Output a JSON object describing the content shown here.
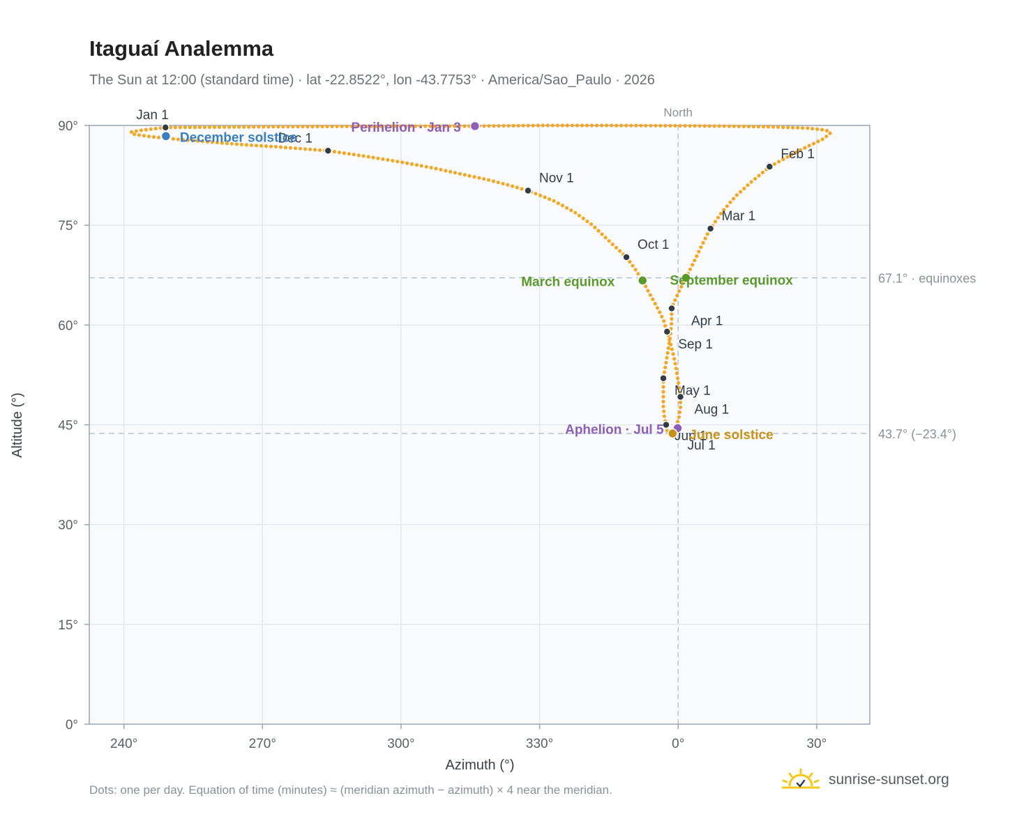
{
  "header": {
    "title": "Itaguaí Analemma",
    "subtitle": "The Sun at 12:00 (standard time) · lat -22.8522°, lon -43.7753° · America/Sao_Paulo · 2026"
  },
  "footer": {
    "note": "Dots: one per day. Equation of time (minutes) ≈ (meridian azimuth − azimuth) × 4 near the meridian.",
    "brand": "sunrise-sunset.org",
    "brand_icon": "sun-check-icon"
  },
  "colors": {
    "curve": "#f5a623",
    "month_marker": "#333b45",
    "equinox": "#5a9a2a",
    "june_solstice": "#c8921a",
    "december_solstice": "#3a7ec0",
    "perihelion_aphelion": "#8e5fb8",
    "plot_bg": "#f8fafc",
    "grid": "#e3e7ec",
    "reference_line": "#b7c3d0"
  },
  "chart_data": {
    "type": "scatter",
    "xlabel": "Azimuth (°)",
    "ylabel": "Altitude (°)",
    "xlim": [
      232.5,
      41.5
    ],
    "ylim": [
      0,
      90
    ],
    "x_ticks": [
      "240°",
      "270°",
      "300°",
      "330°",
      "0°",
      "30°"
    ],
    "x_tick_values": [
      240,
      270,
      300,
      330,
      360,
      390
    ],
    "y_ticks": [
      "0°",
      "15°",
      "30°",
      "45°",
      "60°",
      "75°",
      "90°"
    ],
    "y_tick_values": [
      0,
      15,
      30,
      45,
      60,
      75,
      90
    ],
    "grid": true,
    "north_label": "North",
    "north_azimuth": 0,
    "reference_lines": [
      {
        "altitude": 67.1,
        "label": "67.1° · equinoxes"
      },
      {
        "altitude": 43.7,
        "label": "43.7° (−23.4°)"
      }
    ],
    "month_markers": [
      {
        "label": "Jan 1",
        "az": 249.0,
        "alt": 89.7
      },
      {
        "label": "Feb 1",
        "az": 19.8,
        "alt": 83.8
      },
      {
        "label": "Mar 1",
        "az": 7.0,
        "alt": 74.5
      },
      {
        "label": "Apr 1",
        "az": 358.6,
        "alt": 62.5
      },
      {
        "label": "May 1",
        "az": 356.8,
        "alt": 52.0
      },
      {
        "label": "Jun 1",
        "az": 357.4,
        "alt": 45.0
      },
      {
        "label": "Jul 1",
        "az": 359.0,
        "alt": 43.8
      },
      {
        "label": "Aug 1",
        "az": 0.5,
        "alt": 49.2
      },
      {
        "label": "Sep 1",
        "az": 357.6,
        "alt": 59.0
      },
      {
        "label": "Oct 1",
        "az": 348.8,
        "alt": 70.2
      },
      {
        "label": "Nov 1",
        "az": 327.5,
        "alt": 80.2
      },
      {
        "label": "Dec 1",
        "az": 284.2,
        "alt": 86.2
      }
    ],
    "events": [
      {
        "label": "December solstice",
        "az": 249.1,
        "alt": 88.4,
        "kind": "december_solstice"
      },
      {
        "label": "Perihelion · Jan 3",
        "az": 316.0,
        "alt": 89.9,
        "kind": "perihelion_aphelion"
      },
      {
        "label": "March equinox",
        "az": 352.3,
        "alt": 66.7,
        "kind": "equinox"
      },
      {
        "label": "September equinox",
        "az": 1.7,
        "alt": 67.1,
        "kind": "equinox"
      },
      {
        "label": "Aphelion · Jul 5",
        "az": 359.9,
        "alt": 44.5,
        "kind": "perihelion_aphelion"
      },
      {
        "label": "June solstice",
        "az": 358.8,
        "alt": 43.7,
        "kind": "june_solstice"
      }
    ],
    "daily_path": [
      [
        249.0,
        89.7
      ],
      [
        244.0,
        89.3
      ],
      [
        241.5,
        89.0
      ],
      [
        242.0,
        88.7
      ],
      [
        246.0,
        88.3
      ],
      [
        252.0,
        87.9
      ],
      [
        259.0,
        87.5
      ],
      [
        266.0,
        87.1
      ],
      [
        273.0,
        86.8
      ],
      [
        278.5,
        86.5
      ],
      [
        284.2,
        86.2
      ],
      [
        292.0,
        85.4
      ],
      [
        300.0,
        84.5
      ],
      [
        307.0,
        83.6
      ],
      [
        313.0,
        82.7
      ],
      [
        319.0,
        81.8
      ],
      [
        323.5,
        81.0
      ],
      [
        327.5,
        80.2
      ],
      [
        333.0,
        78.7
      ],
      [
        337.5,
        77.0
      ],
      [
        341.5,
        75.0
      ],
      [
        344.8,
        72.8
      ],
      [
        348.8,
        70.2
      ],
      [
        350.8,
        68.3
      ],
      [
        352.5,
        66.4
      ],
      [
        354.0,
        64.5
      ],
      [
        355.5,
        62.6
      ],
      [
        356.8,
        60.8
      ],
      [
        357.6,
        59.0
      ],
      [
        358.3,
        57.4
      ],
      [
        358.9,
        55.7
      ],
      [
        359.4,
        54.1
      ],
      [
        359.8,
        52.4
      ],
      [
        0.2,
        50.8
      ],
      [
        0.5,
        49.2
      ],
      [
        0.5,
        47.6
      ],
      [
        0.2,
        46.2
      ],
      [
        359.7,
        45.0
      ],
      [
        359.0,
        43.8
      ],
      [
        358.2,
        43.7
      ],
      [
        357.6,
        44.1
      ],
      [
        357.4,
        45.0
      ],
      [
        357.0,
        46.3
      ],
      [
        356.8,
        47.8
      ],
      [
        356.8,
        49.8
      ],
      [
        356.8,
        52.0
      ],
      [
        357.3,
        54.0
      ],
      [
        357.8,
        56.1
      ],
      [
        358.3,
        58.3
      ],
      [
        358.6,
        60.4
      ],
      [
        358.6,
        62.5
      ],
      [
        359.5,
        64.0
      ],
      [
        0.5,
        65.5
      ],
      [
        1.7,
        67.1
      ],
      [
        3.2,
        69.2
      ],
      [
        4.8,
        71.5
      ],
      [
        6.0,
        73.2
      ],
      [
        7.0,
        74.5
      ],
      [
        9.5,
        77.0
      ],
      [
        12.5,
        79.4
      ],
      [
        16.0,
        81.6
      ],
      [
        19.8,
        83.8
      ],
      [
        23.5,
        85.2
      ],
      [
        27.0,
        86.5
      ],
      [
        31.5,
        88.0
      ],
      [
        33.0,
        88.9
      ],
      [
        32.0,
        89.3
      ],
      [
        28.0,
        89.6
      ],
      [
        20.0,
        89.8
      ],
      [
        10.0,
        89.9
      ],
      [
        0.0,
        89.95
      ],
      [
        345.0,
        90.0
      ],
      [
        330.0,
        90.0
      ],
      [
        316.0,
        89.9
      ],
      [
        300.0,
        89.9
      ],
      [
        285.0,
        89.85
      ],
      [
        270.0,
        89.8
      ],
      [
        260.0,
        89.75
      ],
      [
        249.0,
        89.7
      ]
    ]
  }
}
